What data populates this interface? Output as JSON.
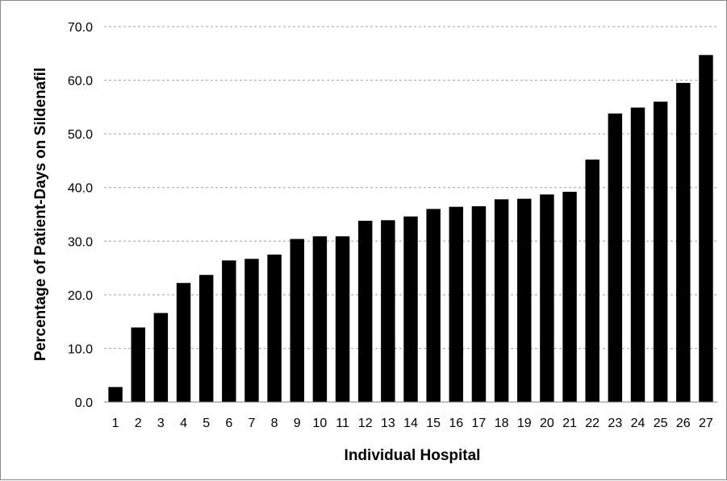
{
  "chart_data": {
    "type": "bar",
    "title": "",
    "xlabel": "Individual Hospital",
    "ylabel": "Percentage of Patient-Days on Sildenafil",
    "ylim": [
      0,
      70
    ],
    "yticks": [
      "0.0",
      "10.0",
      "20.0",
      "30.0",
      "40.0",
      "50.0",
      "60.0",
      "70.0"
    ],
    "grid": "horizontal-dashed",
    "legend": "none",
    "bar_color": "#000000",
    "categories": [
      "1",
      "2",
      "3",
      "4",
      "5",
      "6",
      "7",
      "8",
      "9",
      "10",
      "11",
      "12",
      "13",
      "14",
      "15",
      "16",
      "17",
      "18",
      "19",
      "20",
      "21",
      "22",
      "23",
      "24",
      "25",
      "26",
      "27"
    ],
    "values": [
      2.8,
      13.9,
      16.6,
      22.2,
      23.7,
      26.4,
      26.7,
      27.5,
      30.4,
      30.9,
      30.9,
      33.8,
      33.9,
      34.6,
      36.0,
      36.4,
      36.5,
      37.8,
      37.9,
      38.7,
      39.2,
      45.2,
      53.8,
      54.9,
      56.0,
      59.5,
      64.7
    ]
  }
}
